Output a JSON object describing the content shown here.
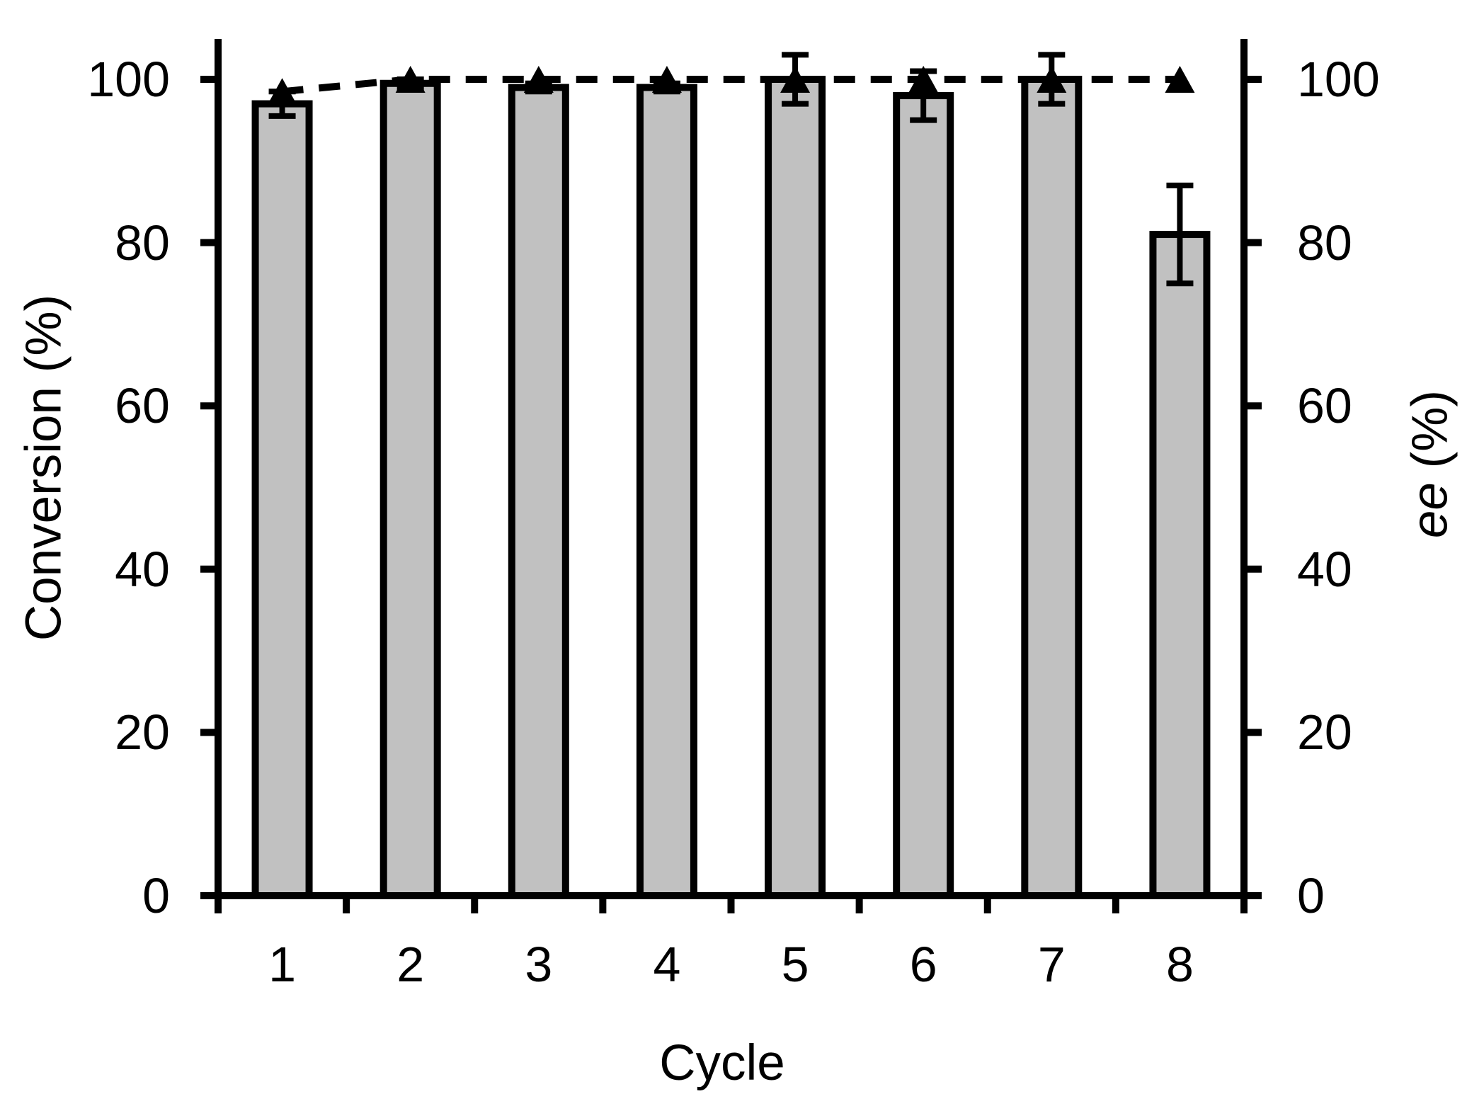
{
  "chart_data": {
    "type": "bar",
    "subtype": "bar-with-line-overlay",
    "categories": [
      "1",
      "2",
      "3",
      "4",
      "5",
      "6",
      "7",
      "8"
    ],
    "series": [
      {
        "name": "Conversion",
        "type": "bar",
        "axis": "left",
        "values": [
          97,
          99.5,
          99,
          99,
          100,
          98,
          100,
          81
        ],
        "error_bars": [
          1.5,
          0.5,
          0.5,
          0.5,
          3,
          3,
          3,
          6
        ],
        "fill": "#c1c1c1",
        "outline": "#000000"
      },
      {
        "name": "ee",
        "type": "line",
        "axis": "right",
        "values": [
          98.5,
          100,
          100,
          100,
          100,
          100,
          100,
          100
        ],
        "marker": "filled-triangle-up",
        "line_style": "dashed",
        "color": "#000000"
      }
    ],
    "x_axis": {
      "label": "Cycle",
      "tick_labels": [
        "1",
        "2",
        "3",
        "4",
        "5",
        "6",
        "7",
        "8"
      ]
    },
    "y_axis_left": {
      "label": "Conversion (%)",
      "min": 0,
      "max": 100,
      "ticks": [
        0,
        20,
        40,
        60,
        80,
        100
      ]
    },
    "y_axis_right": {
      "label": "ee (%)",
      "label_italic": "ee",
      "label_rest": " (%)",
      "min": 0,
      "max": 100,
      "ticks": [
        0,
        20,
        40,
        60,
        80,
        100
      ]
    },
    "grid": "off",
    "legend": "none",
    "colors": {
      "background": "#ffffff",
      "axis": "#000000",
      "bar_fill": "#c1c1c1",
      "bar_outline": "#000000",
      "line": "#000000",
      "marker": "#000000",
      "error_bar": "#000000",
      "text": "#000000"
    }
  }
}
